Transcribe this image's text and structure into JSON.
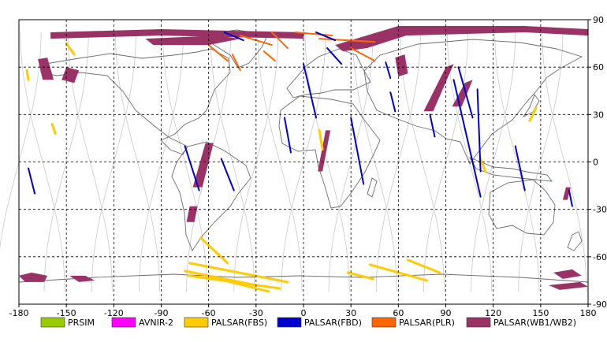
{
  "map": {
    "lon_range": [
      -180,
      180
    ],
    "lat_range": [
      -90,
      90
    ],
    "x_ticks": [
      -180,
      -150,
      -120,
      -90,
      -60,
      -30,
      0,
      30,
      60,
      90,
      120,
      150,
      180
    ],
    "y_ticks": [
      90,
      60,
      30,
      0,
      -30,
      -60,
      -90
    ],
    "x_tick_labels": [
      "-180",
      "-150",
      "-120",
      "-90",
      "-60",
      "-30",
      "0",
      "30",
      "60",
      "90",
      "120",
      "150",
      "180"
    ],
    "y_tick_labels": [
      "90",
      "60",
      "30",
      "0",
      "-30",
      "-60",
      "-90"
    ],
    "grid": "dashed",
    "orbit_color": "#c8c8c8",
    "coast_color": "#6a6a6a"
  },
  "legend": {
    "placement": "bottom",
    "items": [
      {
        "label": "PRSIM",
        "color": "#99cc00"
      },
      {
        "label": "AVNIR-2",
        "color": "#ff00ff"
      },
      {
        "label": "PALSAR(FBS)",
        "color": "#ffcc00"
      },
      {
        "label": "PALSAR(FBD)",
        "color": "#0000cc"
      },
      {
        "label": "PALSAR(PLR)",
        "color": "#ff6600"
      },
      {
        "label": "PALSAR(WB1/WB2)",
        "color": "#993366"
      }
    ]
  },
  "coverage": {
    "wb": [
      [
        [
          -160,
          82
        ],
        [
          -90,
          84
        ],
        [
          0,
          82
        ],
        [
          0,
          78
        ],
        [
          -90,
          80
        ],
        [
          -160,
          78
        ]
      ],
      [
        [
          -100,
          78
        ],
        [
          -55,
          80
        ],
        [
          -40,
          78
        ],
        [
          -60,
          74
        ],
        [
          -95,
          74
        ]
      ],
      [
        [
          20,
          74
        ],
        [
          60,
          86
        ],
        [
          140,
          86
        ],
        [
          180,
          84
        ],
        [
          180,
          80
        ],
        [
          140,
          82
        ],
        [
          65,
          80
        ],
        [
          40,
          72
        ],
        [
          25,
          70
        ]
      ],
      [
        [
          -168,
          65
        ],
        [
          -162,
          66
        ],
        [
          -158,
          52
        ],
        [
          -165,
          52
        ]
      ],
      [
        [
          -150,
          60
        ],
        [
          -142,
          58
        ],
        [
          -145,
          50
        ],
        [
          -153,
          52
        ]
      ],
      [
        [
          58,
          66
        ],
        [
          64,
          68
        ],
        [
          66,
          56
        ],
        [
          60,
          54
        ]
      ],
      [
        [
          90,
          60
        ],
        [
          95,
          62
        ],
        [
          82,
          32
        ],
        [
          76,
          32
        ]
      ],
      [
        [
          102,
          50
        ],
        [
          107,
          52
        ],
        [
          100,
          35
        ],
        [
          94,
          35
        ]
      ],
      [
        [
          -62,
          12
        ],
        [
          -57,
          12
        ],
        [
          -64,
          -16
        ],
        [
          -70,
          -16
        ]
      ],
      [
        [
          -72,
          -28
        ],
        [
          -67,
          -28
        ],
        [
          -69,
          -38
        ],
        [
          -74,
          -38
        ]
      ],
      [
        [
          14,
          20
        ],
        [
          17,
          20
        ],
        [
          12,
          -6
        ],
        [
          9,
          -6
        ]
      ],
      [
        [
          166,
          -16
        ],
        [
          169,
          -16
        ],
        [
          167,
          -24
        ],
        [
          164,
          -24
        ]
      ],
      [
        [
          -180,
          -72
        ],
        [
          -172,
          -70
        ],
        [
          -162,
          -72
        ],
        [
          -164,
          -76
        ],
        [
          -176,
          -76
        ]
      ],
      [
        [
          -148,
          -72
        ],
        [
          -138,
          -72
        ],
        [
          -132,
          -75
        ],
        [
          -142,
          -76
        ]
      ],
      [
        [
          158,
          -70
        ],
        [
          170,
          -68
        ],
        [
          176,
          -72
        ],
        [
          164,
          -74
        ]
      ],
      [
        [
          155,
          -78
        ],
        [
          175,
          -76
        ],
        [
          180,
          -79
        ],
        [
          162,
          -81
        ]
      ]
    ],
    "fbd": [
      [
        [
          -50,
          82
        ],
        [
          -38,
          77
        ]
      ],
      [
        [
          8,
          82
        ],
        [
          20,
          77
        ]
      ],
      [
        [
          15,
          72
        ],
        [
          24,
          62
        ]
      ],
      [
        [
          0,
          62
        ],
        [
          8,
          28
        ]
      ],
      [
        [
          -12,
          28
        ],
        [
          -8,
          6
        ]
      ],
      [
        [
          -75,
          10
        ],
        [
          -66,
          -18
        ]
      ],
      [
        [
          -52,
          2
        ],
        [
          -44,
          -18
        ]
      ],
      [
        [
          -174,
          -4
        ],
        [
          -170,
          -20
        ]
      ],
      [
        [
          30,
          28
        ],
        [
          38,
          -14
        ]
      ],
      [
        [
          52,
          63
        ],
        [
          55,
          53
        ]
      ],
      [
        [
          55,
          44
        ],
        [
          58,
          32
        ]
      ],
      [
        [
          80,
          30
        ],
        [
          83,
          16
        ]
      ],
      [
        [
          98,
          60
        ],
        [
          107,
          28
        ]
      ],
      [
        [
          95,
          52
        ],
        [
          112,
          -22
        ]
      ],
      [
        [
          110,
          46
        ],
        [
          112,
          -6
        ]
      ],
      [
        [
          134,
          10
        ],
        [
          140,
          -18
        ]
      ],
      [
        [
          168,
          -18
        ],
        [
          170,
          -28
        ]
      ]
    ],
    "fbs": [
      [
        [
          -150,
          75
        ],
        [
          -145,
          68
        ]
      ],
      [
        [
          -175,
          58
        ],
        [
          -174,
          52
        ]
      ],
      [
        [
          -159,
          24
        ],
        [
          -157,
          18
        ]
      ],
      [
        [
          10,
          20
        ],
        [
          12,
          8
        ]
      ],
      [
        [
          -65,
          -48
        ],
        [
          -48,
          -64
        ]
      ],
      [
        [
          -72,
          -64
        ],
        [
          -10,
          -76
        ]
      ],
      [
        [
          -75,
          -69
        ],
        [
          -30,
          -78
        ]
      ],
      [
        [
          -73,
          -72
        ],
        [
          -15,
          -80
        ]
      ],
      [
        [
          -62,
          -72
        ],
        [
          -22,
          -82
        ]
      ],
      [
        [
          28,
          -70
        ],
        [
          44,
          -74
        ]
      ],
      [
        [
          42,
          -65
        ],
        [
          78,
          -75
        ]
      ],
      [
        [
          66,
          -62
        ],
        [
          86,
          -70
        ]
      ],
      [
        [
          147,
          34
        ],
        [
          143,
          26
        ]
      ],
      [
        [
          112,
          2
        ],
        [
          115,
          -6
        ]
      ]
    ],
    "plr": [
      [
        [
          -40,
          80
        ],
        [
          -20,
          74
        ]
      ],
      [
        [
          -45,
          68
        ],
        [
          -40,
          58
        ]
      ],
      [
        [
          -60,
          74
        ],
        [
          -48,
          64
        ]
      ],
      [
        [
          -20,
          82
        ],
        [
          -10,
          72
        ]
      ],
      [
        [
          -5,
          82
        ],
        [
          18,
          80
        ]
      ],
      [
        [
          10,
          78
        ],
        [
          45,
          76
        ]
      ],
      [
        [
          30,
          72
        ],
        [
          45,
          64
        ]
      ],
      [
        [
          -25,
          70
        ],
        [
          -18,
          64
        ]
      ]
    ],
    "orbits": {
      "descending_offsets": [
        -180,
        -150,
        -120,
        -90,
        -60,
        -30,
        0,
        30,
        60,
        90,
        120,
        150
      ],
      "ascending_offsets": [
        -165,
        -135,
        -105,
        -75,
        -45,
        -15,
        15,
        45,
        75,
        105,
        135,
        165
      ]
    }
  }
}
